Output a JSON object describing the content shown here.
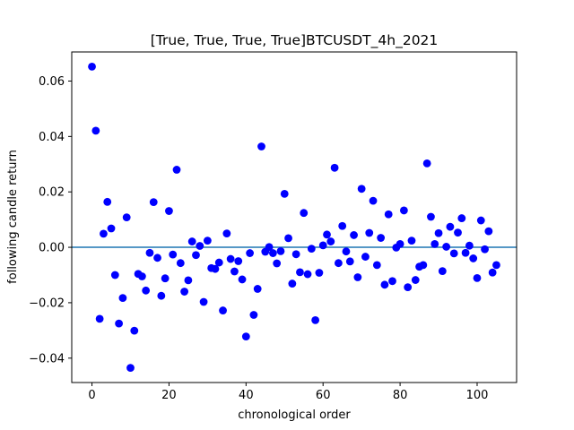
{
  "chart_data": {
    "type": "scatter",
    "title": "[True, True, True, True]BTCUSDT_4h_2021",
    "xlabel": "chronological order",
    "ylabel": "following candle return",
    "xlim": [
      -5.25,
      110.25
    ],
    "ylim": [
      -0.0488,
      0.0705
    ],
    "xticks": [
      0,
      20,
      40,
      60,
      80,
      100
    ],
    "xtick_labels": [
      "0",
      "20",
      "40",
      "60",
      "80",
      "100"
    ],
    "yticks": [
      -0.04,
      -0.02,
      0.0,
      0.02,
      0.04,
      0.06
    ],
    "ytick_labels": [
      "−0.04",
      "−0.02",
      "0.00",
      "0.02",
      "0.04",
      "0.06"
    ],
    "grid": false,
    "hline": {
      "y": 0.0,
      "color": "#1f77b4"
    },
    "series": [
      {
        "color": "#0000ff",
        "x": [
          0,
          1,
          2,
          3,
          4,
          5,
          6,
          7,
          8,
          9,
          10,
          11,
          12,
          13,
          14,
          15,
          16,
          17,
          18,
          19,
          20,
          21,
          22,
          23,
          24,
          25,
          26,
          27,
          28,
          29,
          30,
          31,
          32,
          33,
          34,
          35,
          36,
          37,
          38,
          39,
          40,
          41,
          42,
          43,
          44,
          45,
          46,
          47,
          48,
          49,
          50,
          51,
          52,
          53,
          54,
          55,
          56,
          57,
          58,
          59,
          60,
          61,
          62,
          63,
          64,
          65,
          66,
          67,
          68,
          69,
          70,
          71,
          72,
          73,
          74,
          75,
          76,
          77,
          78,
          79,
          80,
          81,
          82,
          83,
          84,
          85,
          86,
          87,
          88,
          89,
          90,
          91,
          92,
          93,
          94,
          95,
          96,
          97,
          98,
          99,
          100,
          101,
          102,
          103,
          104,
          105
        ],
        "y": [
          0.0652,
          0.0421,
          -0.0258,
          0.0049,
          0.0164,
          0.0068,
          -0.01,
          -0.0275,
          -0.0183,
          0.0108,
          -0.0435,
          -0.0301,
          -0.0096,
          -0.0105,
          -0.0156,
          -0.002,
          0.0163,
          -0.0038,
          -0.0175,
          -0.0112,
          0.0131,
          -0.0026,
          0.028,
          -0.0057,
          -0.016,
          -0.0119,
          0.0021,
          -0.0028,
          0.0005,
          -0.0197,
          0.0024,
          -0.0075,
          -0.0078,
          -0.0055,
          -0.0228,
          0.005,
          -0.0042,
          -0.0087,
          -0.005,
          -0.0116,
          -0.0322,
          -0.0021,
          -0.0244,
          -0.015,
          0.0364,
          -0.0016,
          0.0001,
          -0.0021,
          -0.0058,
          -0.0014,
          0.0193,
          0.0033,
          -0.0131,
          -0.0025,
          -0.009,
          0.0124,
          -0.0097,
          -0.0005,
          -0.0263,
          -0.0092,
          0.0007,
          0.0046,
          0.0021,
          0.0287,
          -0.0057,
          0.0077,
          -0.0015,
          -0.0051,
          0.0044,
          -0.0108,
          0.0211,
          -0.0034,
          0.0052,
          0.0168,
          -0.0064,
          0.0034,
          -0.0135,
          0.0119,
          -0.0122,
          -0.0001,
          0.0012,
          0.0133,
          -0.0144,
          0.0024,
          -0.0118,
          -0.007,
          -0.0064,
          0.0303,
          0.011,
          0.0012,
          0.0051,
          -0.0086,
          0.0002,
          0.0074,
          -0.0022,
          0.0053,
          0.0105,
          -0.002,
          0.0006,
          -0.004,
          -0.0111,
          0.0097,
          -0.0007,
          0.0058,
          -0.0091,
          -0.0064
        ]
      }
    ]
  }
}
